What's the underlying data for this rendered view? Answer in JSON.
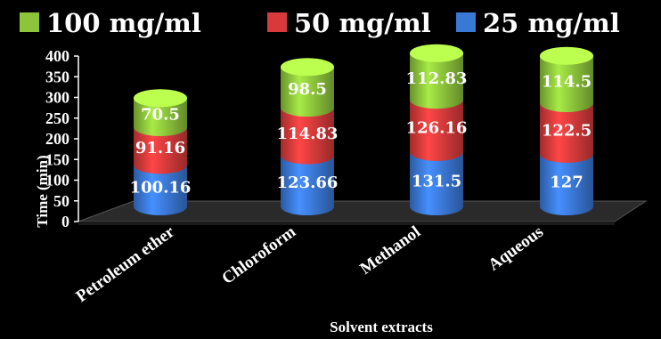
{
  "chart_data": {
    "type": "bar",
    "stacked": true,
    "style": "3d-cylinder",
    "xlabel": "Solvent extracts",
    "ylabel": "Time (min)",
    "ylim": [
      0,
      400
    ],
    "yticks": [
      0,
      50,
      100,
      150,
      200,
      250,
      300,
      350,
      400
    ],
    "categories": [
      "Petroleum ether",
      "Chloroform",
      "Methanol",
      "Aqueous"
    ],
    "series": [
      {
        "name": "25 mg/ml",
        "color": "#3a78d6",
        "values": [
          100.16,
          123.66,
          131.5,
          127
        ]
      },
      {
        "name": "50 mg/ml",
        "color": "#d63a3a",
        "values": [
          91.16,
          114.83,
          126.16,
          122.5
        ]
      },
      {
        "name": "100 mg/ml",
        "color": "#8cc43a",
        "values": [
          70.5,
          98.5,
          112.83,
          114.5
        ]
      }
    ],
    "data_labels": [
      [
        "100.16",
        "123.66",
        "131.5",
        "127"
      ],
      [
        "91.16",
        "114.83",
        "126.16",
        "122.5"
      ],
      [
        "70.5",
        "98.5",
        "112.83",
        "114.5"
      ]
    ],
    "legend": {
      "placement": "top",
      "order": [
        2,
        1,
        0
      ]
    },
    "background": "#000000",
    "floor_color": "#2a2a2a"
  }
}
